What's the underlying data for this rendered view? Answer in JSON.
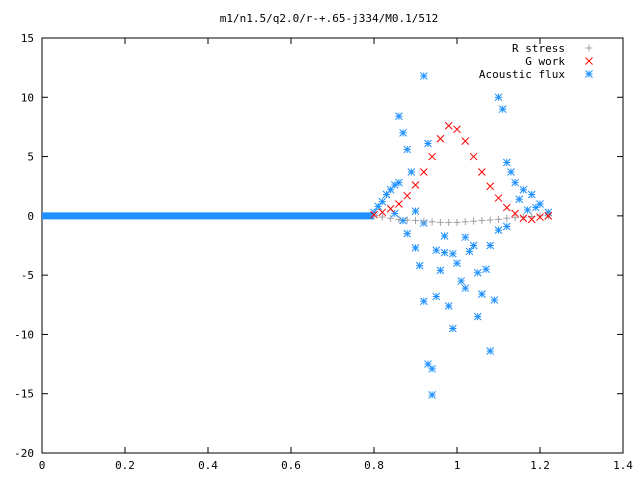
{
  "chart_data": {
    "type": "scatter",
    "title": "m1/n1.5/q2.0/r-+.65-j334/M0.1/512",
    "xlabel": "",
    "ylabel": "",
    "xlim": [
      0,
      1.4
    ],
    "ylim": [
      -20,
      15
    ],
    "x_ticks": [
      "0",
      "0.2",
      "0.4",
      "0.6",
      "0.8",
      "1",
      "1.2",
      "1.4"
    ],
    "y_ticks": [
      "15",
      "10",
      "5",
      "0",
      "-5",
      "-10",
      "-15",
      "-20"
    ],
    "grid": false,
    "legend_position": "top-right",
    "series": [
      {
        "name": "R stress",
        "marker": "plus",
        "color": "#a0a0a0",
        "points": [
          [
            0.8,
            0.0
          ],
          [
            0.82,
            -0.1
          ],
          [
            0.84,
            -0.2
          ],
          [
            0.86,
            -0.3
          ],
          [
            0.88,
            -0.35
          ],
          [
            0.9,
            -0.4
          ],
          [
            0.92,
            -0.45
          ],
          [
            0.94,
            -0.5
          ],
          [
            0.96,
            -0.55
          ],
          [
            0.98,
            -0.55
          ],
          [
            1.0,
            -0.55
          ],
          [
            1.02,
            -0.5
          ],
          [
            1.04,
            -0.45
          ],
          [
            1.06,
            -0.4
          ],
          [
            1.08,
            -0.35
          ],
          [
            1.1,
            -0.3
          ],
          [
            1.12,
            -0.2
          ],
          [
            1.14,
            -0.15
          ],
          [
            1.16,
            -0.1
          ],
          [
            1.18,
            -0.05
          ],
          [
            1.2,
            0.0
          ],
          [
            1.22,
            0.0
          ]
        ]
      },
      {
        "name": "G work",
        "marker": "cross",
        "color": "#ff0000",
        "points": [
          [
            0.8,
            0.1
          ],
          [
            0.82,
            0.3
          ],
          [
            0.84,
            0.6
          ],
          [
            0.86,
            1.0
          ],
          [
            0.88,
            1.7
          ],
          [
            0.9,
            2.6
          ],
          [
            0.92,
            3.7
          ],
          [
            0.94,
            5.0
          ],
          [
            0.96,
            6.5
          ],
          [
            0.98,
            7.6
          ],
          [
            1.0,
            7.3
          ],
          [
            1.02,
            6.3
          ],
          [
            1.04,
            5.0
          ],
          [
            1.06,
            3.7
          ],
          [
            1.08,
            2.5
          ],
          [
            1.1,
            1.5
          ],
          [
            1.12,
            0.7
          ],
          [
            1.14,
            0.2
          ],
          [
            1.16,
            -0.2
          ],
          [
            1.18,
            -0.3
          ],
          [
            1.2,
            -0.1
          ],
          [
            1.22,
            0.0
          ]
        ]
      },
      {
        "name": "Acoustic flux",
        "marker": "star",
        "color": "#1e90ff",
        "baseline": {
          "x_from": 0,
          "x_to": 0.8,
          "y": 0
        },
        "points": [
          [
            0.8,
            0.3
          ],
          [
            0.81,
            0.8
          ],
          [
            0.82,
            1.2
          ],
          [
            0.83,
            1.8
          ],
          [
            0.84,
            2.2
          ],
          [
            0.85,
            2.6
          ],
          [
            0.86,
            2.8
          ],
          [
            0.86,
            8.4
          ],
          [
            0.87,
            7.0
          ],
          [
            0.88,
            5.6
          ],
          [
            0.89,
            3.7
          ],
          [
            0.9,
            0.4
          ],
          [
            0.91,
            -4.2
          ],
          [
            0.92,
            11.8
          ],
          [
            0.92,
            -7.2
          ],
          [
            0.93,
            6.1
          ],
          [
            0.93,
            -12.5
          ],
          [
            0.94,
            -15.1
          ],
          [
            0.94,
            -12.9
          ],
          [
            0.95,
            -6.8
          ],
          [
            0.96,
            -4.6
          ],
          [
            0.97,
            -3.1
          ],
          [
            0.98,
            -7.6
          ],
          [
            0.99,
            -9.5
          ],
          [
            1.0,
            -4.0
          ],
          [
            1.01,
            -5.5
          ],
          [
            1.02,
            -6.1
          ],
          [
            1.03,
            -3.0
          ],
          [
            1.04,
            -2.5
          ],
          [
            1.05,
            -8.5
          ],
          [
            1.06,
            -6.6
          ],
          [
            1.07,
            -4.5
          ],
          [
            1.08,
            -11.4
          ],
          [
            1.09,
            -7.1
          ],
          [
            1.1,
            10.0
          ],
          [
            1.11,
            9.0
          ],
          [
            1.12,
            4.5
          ],
          [
            1.13,
            3.7
          ],
          [
            1.14,
            2.8
          ],
          [
            1.16,
            2.2
          ],
          [
            1.18,
            1.8
          ],
          [
            1.2,
            1.0
          ],
          [
            1.22,
            0.3
          ],
          [
            0.85,
            0.2
          ],
          [
            0.87,
            -0.4
          ],
          [
            0.88,
            -1.5
          ],
          [
            0.9,
            -2.7
          ],
          [
            0.92,
            -0.6
          ],
          [
            0.95,
            -2.9
          ],
          [
            0.97,
            -1.7
          ],
          [
            0.99,
            -3.2
          ],
          [
            1.02,
            -1.8
          ],
          [
            1.05,
            -4.8
          ],
          [
            1.08,
            -2.5
          ],
          [
            1.1,
            -1.2
          ],
          [
            1.12,
            -0.9
          ],
          [
            1.15,
            1.4
          ],
          [
            1.17,
            0.5
          ],
          [
            1.19,
            0.7
          ]
        ]
      }
    ]
  }
}
